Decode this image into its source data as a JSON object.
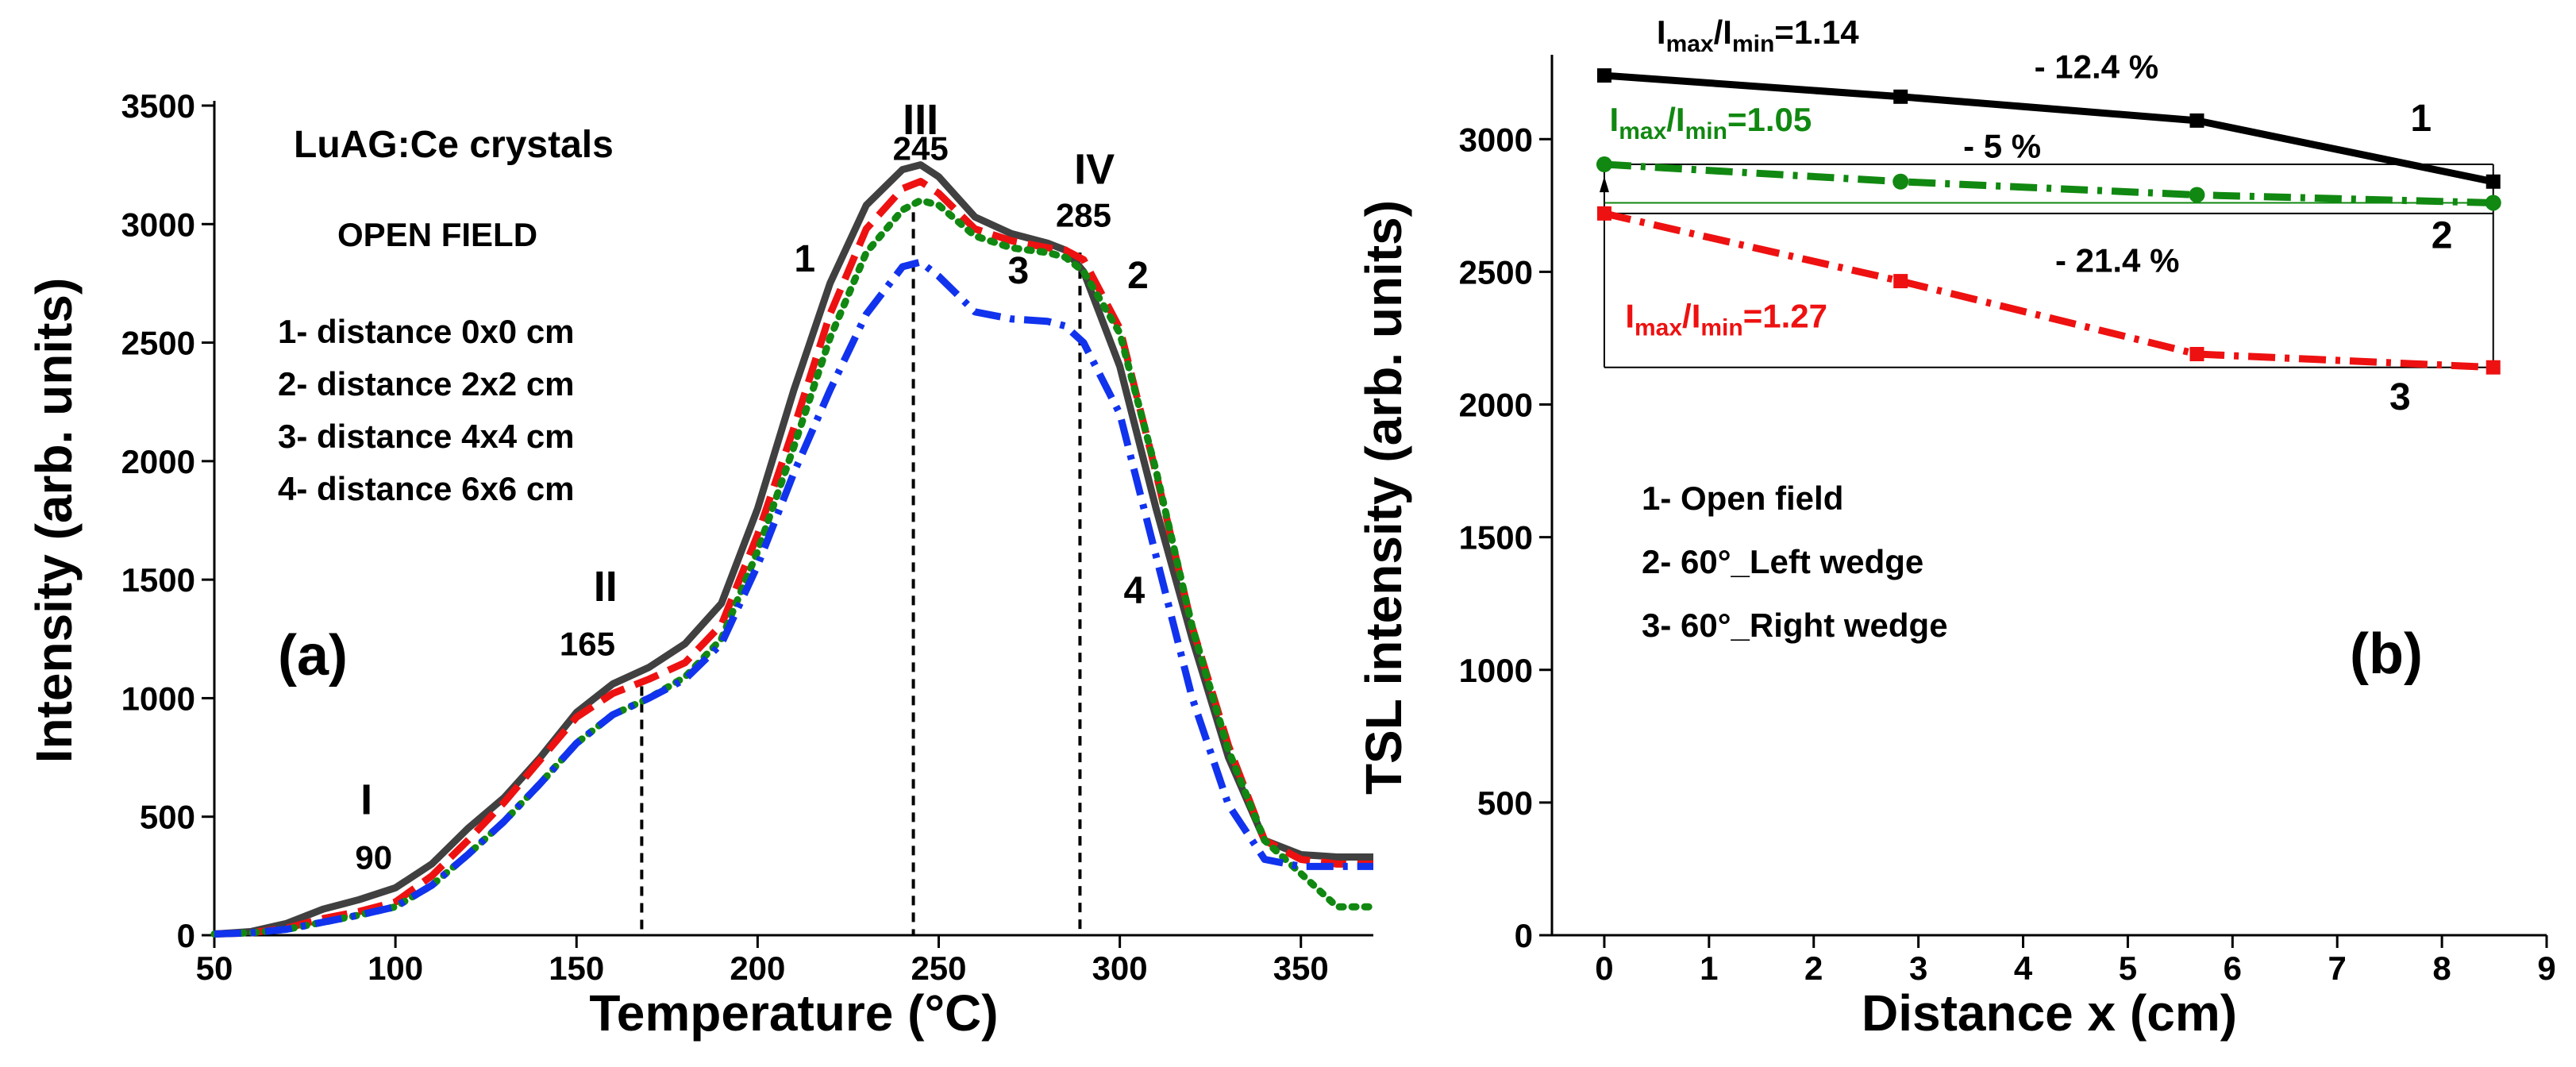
{
  "chart_data": [
    {
      "type": "line",
      "panel_label": "(a)",
      "xlabel": "Temperature (°C)",
      "ylabel": "Intensity (arb. units)",
      "xlim": [
        50,
        370
      ],
      "ylim": [
        0,
        3500
      ],
      "xticks": [
        50,
        100,
        150,
        200,
        250,
        300,
        350
      ],
      "yticks": [
        0,
        500,
        1000,
        1500,
        2000,
        2500,
        3000,
        3500
      ],
      "grid": false,
      "annotations": {
        "title_text": "LuAG:Ce crystals",
        "subtitle_text": "OPEN FIELD",
        "legend_lines": [
          "1- distance 0x0 cm",
          "2- distance 2x2 cm",
          "3- distance 4x4 cm",
          "4- distance 6x6 cm"
        ],
        "peaks": [
          {
            "roman": "I",
            "temp": "90",
            "x": 90
          },
          {
            "roman": "II",
            "temp": "165",
            "x": 168
          },
          {
            "roman": "III",
            "temp": "245",
            "x": 243
          },
          {
            "roman": "IV",
            "temp": "285",
            "x": 289
          }
        ],
        "curve_labels": [
          {
            "text": "1",
            "x": 213,
            "y": 2800
          },
          {
            "text": "2",
            "x": 305,
            "y": 2730
          },
          {
            "text": "3",
            "x": 272,
            "y": 2750
          },
          {
            "text": "4",
            "x": 304,
            "y": 1400
          }
        ]
      },
      "series": [
        {
          "color": "#404040",
          "style": "solid",
          "x": [
            50,
            60,
            70,
            80,
            90,
            100,
            110,
            120,
            130,
            140,
            150,
            160,
            170,
            180,
            190,
            200,
            210,
            220,
            230,
            240,
            245,
            250,
            260,
            270,
            280,
            285,
            290,
            300,
            310,
            320,
            330,
            340,
            350,
            360,
            370
          ],
          "y": [
            5,
            15,
            50,
            110,
            150,
            200,
            300,
            450,
            580,
            750,
            940,
            1060,
            1130,
            1230,
            1400,
            1800,
            2300,
            2750,
            3080,
            3230,
            3250,
            3200,
            3030,
            2960,
            2920,
            2890,
            2800,
            2400,
            1800,
            1250,
            750,
            400,
            340,
            330,
            330
          ]
        },
        {
          "color": "#ee1111",
          "style": "dash",
          "x": [
            50,
            60,
            70,
            80,
            90,
            100,
            110,
            120,
            130,
            140,
            150,
            160,
            170,
            180,
            190,
            200,
            210,
            220,
            230,
            240,
            245,
            250,
            260,
            270,
            280,
            285,
            290,
            300,
            310,
            320,
            330,
            340,
            350,
            360,
            370
          ],
          "y": [
            5,
            10,
            30,
            70,
            100,
            140,
            250,
            400,
            560,
            740,
            920,
            1020,
            1080,
            1150,
            1310,
            1690,
            2140,
            2620,
            2980,
            3150,
            3180,
            3130,
            2980,
            2930,
            2900,
            2890,
            2850,
            2560,
            1950,
            1300,
            800,
            400,
            320,
            300,
            300
          ]
        },
        {
          "color": "#118811",
          "style": "dot",
          "x": [
            50,
            60,
            70,
            80,
            90,
            100,
            110,
            120,
            130,
            140,
            150,
            160,
            170,
            180,
            190,
            200,
            210,
            220,
            230,
            240,
            245,
            250,
            260,
            270,
            280,
            285,
            290,
            300,
            310,
            320,
            330,
            340,
            350,
            360,
            370
          ],
          "y": [
            5,
            10,
            25,
            55,
            85,
            120,
            210,
            340,
            480,
            640,
            810,
            930,
            1000,
            1090,
            1250,
            1620,
            2060,
            2520,
            2880,
            3060,
            3100,
            3080,
            2950,
            2900,
            2880,
            2860,
            2800,
            2540,
            1960,
            1300,
            780,
            400,
            260,
            120,
            120
          ]
        },
        {
          "color": "#1133ee",
          "style": "dashdot",
          "x": [
            50,
            60,
            70,
            80,
            90,
            100,
            110,
            120,
            130,
            140,
            150,
            160,
            170,
            180,
            190,
            200,
            210,
            220,
            230,
            240,
            245,
            250,
            260,
            270,
            280,
            285,
            290,
            300,
            310,
            320,
            330,
            340,
            350,
            360,
            370
          ],
          "y": [
            5,
            10,
            25,
            55,
            85,
            120,
            210,
            340,
            480,
            640,
            810,
            930,
            1000,
            1080,
            1230,
            1560,
            1950,
            2300,
            2620,
            2820,
            2840,
            2780,
            2630,
            2600,
            2590,
            2570,
            2500,
            2200,
            1600,
            1000,
            550,
            320,
            290,
            290,
            290
          ]
        }
      ]
    },
    {
      "type": "line",
      "panel_label": "(b)",
      "xlabel": "Distance x (cm)",
      "ylabel": "TSL intensity (arb. units)",
      "xlim": [
        -0.5,
        9
      ],
      "ylim": [
        0,
        3300
      ],
      "xticks": [
        0,
        1,
        2,
        3,
        4,
        5,
        6,
        7,
        8,
        9
      ],
      "yticks": [
        0,
        500,
        1000,
        1500,
        2000,
        2500,
        3000
      ],
      "grid": false,
      "annotations": {
        "legend_lines": [
          "1- Open field",
          "2- 60°_Left wedge",
          "3- 60°_Right wedge"
        ],
        "ratios": [
          {
            "prefix": "I",
            "sub1": "max",
            "mid": "/I",
            "sub2": "min",
            "value": "=1.14",
            "color": "#000000",
            "x": 0.5,
            "y": 3360
          },
          {
            "prefix": "I",
            "sub1": "max",
            "mid": "/I",
            "sub2": "min",
            "value": "=1.05",
            "color": "#118811",
            "x": 0.05,
            "y": 3030
          },
          {
            "prefix": "I",
            "sub1": "max",
            "mid": "/I",
            "sub2": "min",
            "value": "=1.27",
            "color": "#ee1111",
            "x": 0.2,
            "y": 2290
          }
        ],
        "percents": [
          {
            "text": "- 12.4 %",
            "x": 4.7,
            "y": 3230
          },
          {
            "text": "- 5 %",
            "x": 3.8,
            "y": 2930
          },
          {
            "text": "- 21.4 %",
            "x": 4.9,
            "y": 2500
          }
        ],
        "curve_labels": [
          {
            "text": "1",
            "x": 7.8,
            "y": 3030
          },
          {
            "text": "2",
            "x": 8.0,
            "y": 2590
          },
          {
            "text": "3",
            "x": 7.6,
            "y": 1980
          }
        ]
      },
      "series": [
        {
          "color": "#000000",
          "style": "solid",
          "marker": "square",
          "x": [
            0,
            2.83,
            5.66,
            8.49
          ],
          "y": [
            3240,
            3160,
            3070,
            2840
          ]
        },
        {
          "color": "#118811",
          "style": "dashdot",
          "marker": "circle",
          "x": [
            0,
            2.83,
            5.66,
            8.49
          ],
          "y": [
            2905,
            2840,
            2790,
            2760
          ]
        },
        {
          "color": "#ee1111",
          "style": "dashdot",
          "marker": "square",
          "x": [
            0,
            2.83,
            5.66,
            8.49
          ],
          "y": [
            2720,
            2465,
            2190,
            2140
          ]
        }
      ]
    }
  ]
}
